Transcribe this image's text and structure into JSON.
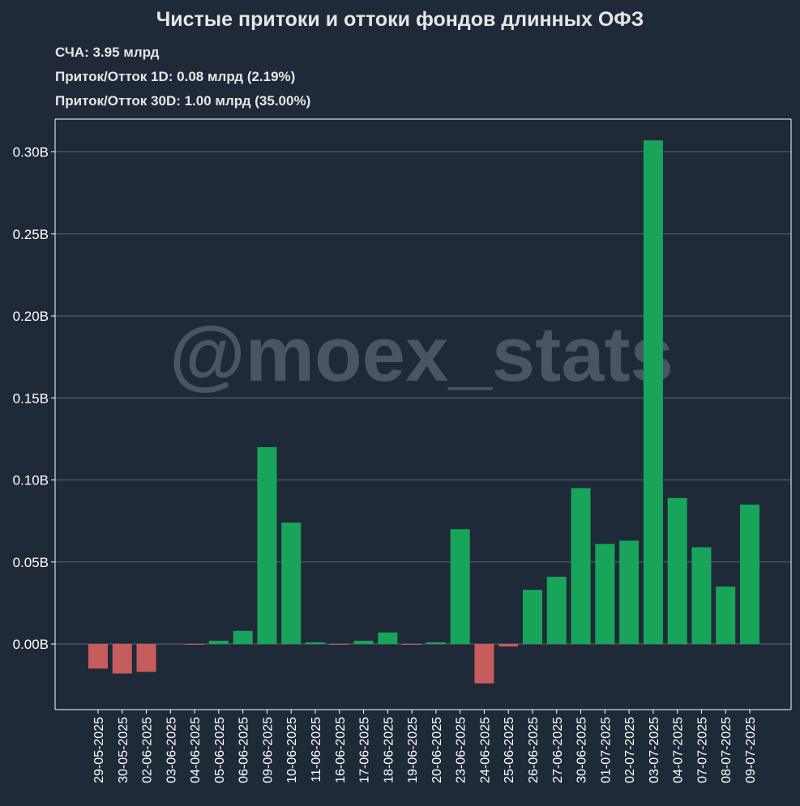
{
  "title": "Чистые притоки и оттоки фондов длинных ОФЗ",
  "info": {
    "nav": "СЧА: 3.95 млрд",
    "flow_1d": "Приток/Отток 1D: 0.08 млрд (2.19%)",
    "flow_30d": "Приток/Отток 30D: 1.00 млрд (35.00%)"
  },
  "watermark": "@moex_stats",
  "colors": {
    "background": "#1f2a38",
    "positive": "#18a55a",
    "negative": "#c75c5c",
    "grid": "#5d6775",
    "watermark": "#4a5564"
  },
  "chart_data": {
    "type": "bar",
    "title": "Чистые притоки и оттоки фондов длинных ОФЗ",
    "xlabel": "",
    "ylabel": "",
    "ylim": [
      -0.04,
      0.32
    ],
    "grid": true,
    "y_ticks": [
      0.0,
      0.05,
      0.1,
      0.15,
      0.2,
      0.25,
      0.3
    ],
    "y_tick_labels": [
      "0.00B",
      "0.05B",
      "0.10B",
      "0.15B",
      "0.20B",
      "0.25B",
      "0.30B"
    ],
    "categories": [
      "29-05-2025",
      "30-05-2025",
      "02-06-2025",
      "03-06-2025",
      "04-06-2025",
      "05-06-2025",
      "06-06-2025",
      "09-06-2025",
      "10-06-2025",
      "11-06-2025",
      "16-06-2025",
      "17-06-2025",
      "18-06-2025",
      "19-06-2025",
      "20-06-2025",
      "23-06-2025",
      "24-06-2025",
      "25-06-2025",
      "26-06-2025",
      "27-06-2025",
      "30-06-2025",
      "01-07-2025",
      "02-07-2025",
      "03-07-2025",
      "04-07-2025",
      "07-07-2025",
      "08-07-2025",
      "09-07-2025"
    ],
    "values": [
      -0.015,
      -0.018,
      -0.017,
      0.0,
      -0.0005,
      0.002,
      0.008,
      0.12,
      0.074,
      0.001,
      -0.0005,
      0.002,
      0.007,
      -0.0005,
      0.001,
      0.07,
      -0.024,
      -0.0015,
      0.033,
      0.041,
      0.095,
      0.061,
      0.063,
      0.307,
      0.089,
      0.059,
      0.035,
      0.085
    ]
  }
}
